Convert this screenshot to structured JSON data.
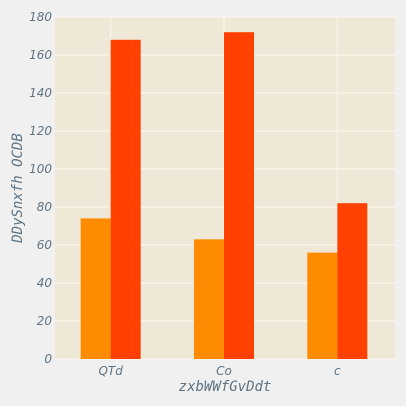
{
  "chart_data": {
    "type": "bar",
    "title": "",
    "xlabel": "zxbWWfGvDdt",
    "ylabel": "DDySnxfh OCDB",
    "categories": [
      "QTd",
      "Co",
      "c"
    ],
    "series": [
      {
        "values": [
          74,
          63,
          56
        ],
        "color": "#ff8c00"
      },
      {
        "values": [
          168,
          172,
          82
        ],
        "color": "#ff4000"
      }
    ],
    "ylim": [
      0,
      180
    ],
    "yticks": [
      0,
      20,
      40,
      60,
      80,
      100,
      120,
      140,
      160,
      180
    ],
    "grid": true,
    "legend": "none",
    "colors": {
      "plot_bg": "#f0e8d6",
      "page_bg": "#f0f0f0",
      "grid": "#faf7ef",
      "text": "#5f7382"
    }
  }
}
